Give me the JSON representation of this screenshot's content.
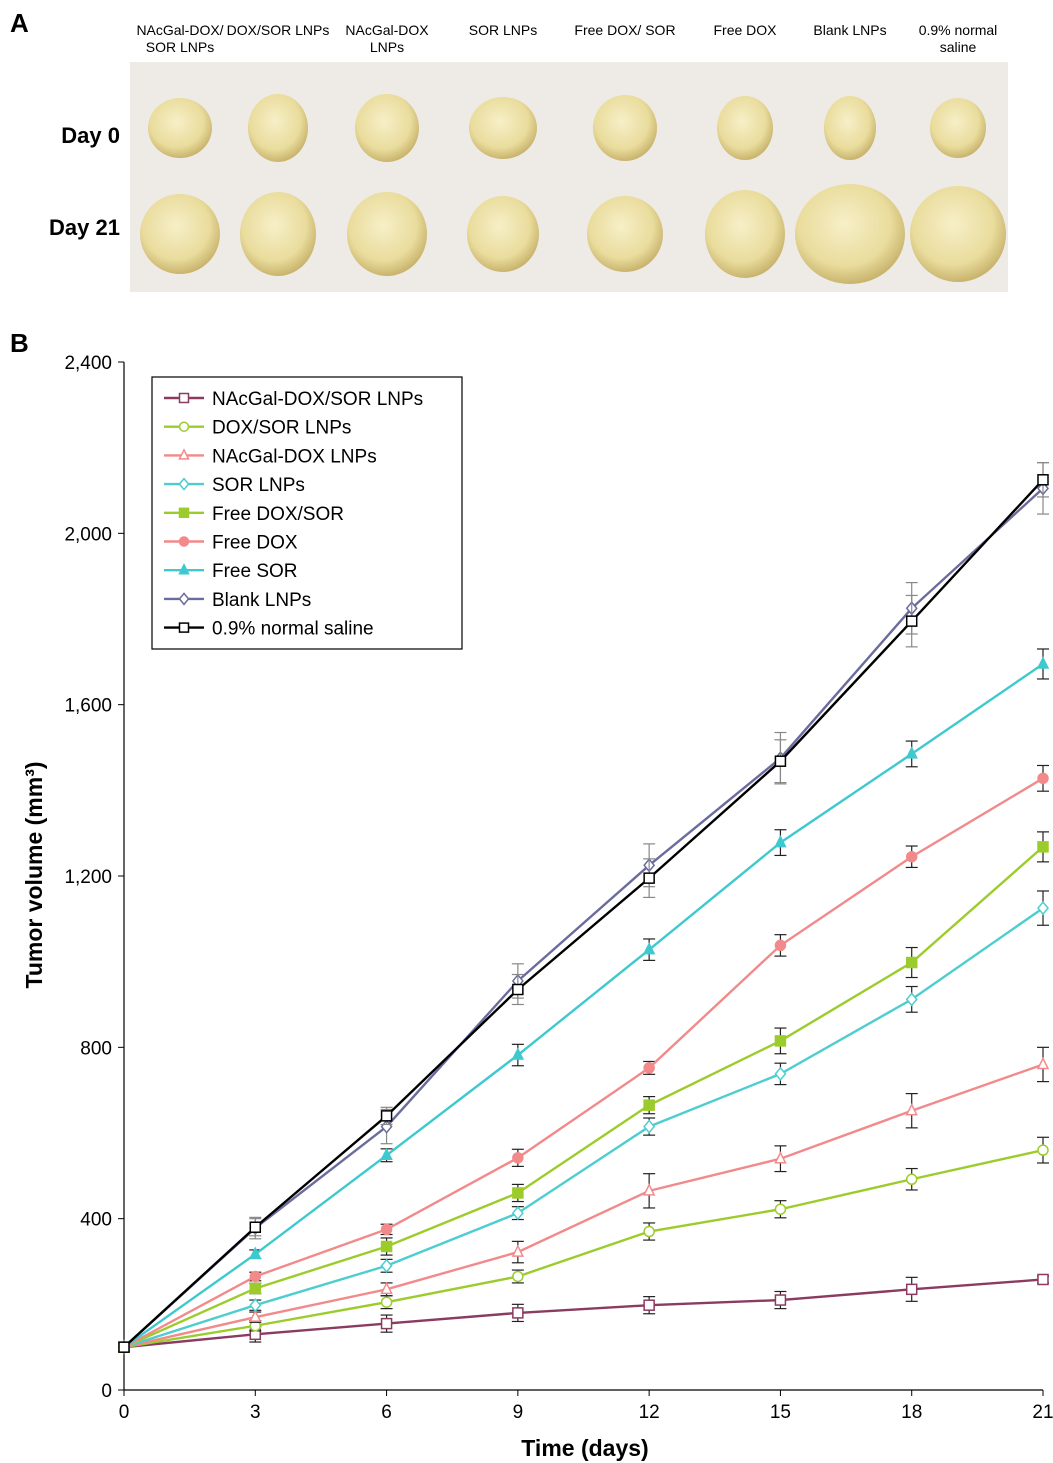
{
  "panel_a": {
    "letter": "A",
    "columns": [
      "NAcGal-DOX/ SOR LNPs",
      "DOX/SOR LNPs",
      "NAcGal-DOX LNPs",
      "SOR LNPs",
      "Free DOX/ SOR",
      "Free DOX",
      "Blank LNPs",
      "0.9% normal saline"
    ],
    "rows": [
      "Day 0",
      "Day 21"
    ],
    "tumor_color": "#e9dc9c"
  },
  "panel_b": {
    "letter": "B"
  },
  "chart_data": {
    "type": "line",
    "xlabel": "Time (days)",
    "ylabel": "Tumor volume (mm³)",
    "x": [
      0,
      3,
      6,
      9,
      12,
      15,
      18,
      21
    ],
    "xticks": [
      "0",
      "3",
      "6",
      "9",
      "12",
      "15",
      "18",
      "21"
    ],
    "yticks": [
      "0",
      "400",
      "800",
      "1,200",
      "1,600",
      "2,000",
      "2,400"
    ],
    "ylim": [
      0,
      2400
    ],
    "xlim": [
      0,
      21
    ],
    "legend": "top-left",
    "grid": false,
    "series": [
      {
        "name": "NAcGal-DOX/SOR LNPs",
        "color": "#8b3a62",
        "marker": "square-open",
        "values": [
          100,
          130,
          155,
          180,
          198,
          210,
          235,
          258
        ],
        "err": [
          10,
          18,
          20,
          20,
          20,
          20,
          28,
          8
        ]
      },
      {
        "name": "DOX/SOR LNPs",
        "color": "#9ccc2b",
        "marker": "circle-open",
        "values": [
          100,
          150,
          205,
          265,
          370,
          422,
          492,
          560
        ],
        "err": [
          8,
          12,
          15,
          15,
          20,
          20,
          25,
          30
        ]
      },
      {
        "name": "NAcGal-DOX LNPs",
        "color": "#f2898a",
        "marker": "triangle-open",
        "values": [
          100,
          170,
          235,
          322,
          465,
          540,
          652,
          760
        ],
        "err": [
          8,
          12,
          15,
          25,
          40,
          30,
          40,
          40
        ]
      },
      {
        "name": "SOR LNPs",
        "color": "#4ecdd0",
        "marker": "diamond-open",
        "values": [
          100,
          198,
          290,
          413,
          615,
          738,
          912,
          1125
        ],
        "err": [
          8,
          12,
          15,
          15,
          20,
          25,
          30,
          40
        ]
      },
      {
        "name": "Free DOX/SOR",
        "color": "#9ccc2b",
        "marker": "square-filled",
        "values": [
          100,
          237,
          335,
          460,
          665,
          815,
          998,
          1268
        ],
        "err": [
          8,
          12,
          20,
          20,
          20,
          30,
          35,
          35
        ]
      },
      {
        "name": "Free DOX",
        "color": "#f2898a",
        "marker": "circle-filled",
        "values": [
          100,
          265,
          375,
          542,
          752,
          1038,
          1245,
          1428
        ],
        "err": [
          8,
          10,
          12,
          20,
          15,
          25,
          25,
          30
        ]
      },
      {
        "name": "Free SOR",
        "color": "#3ec9cf",
        "marker": "triangle-filled",
        "values": [
          100,
          317,
          548,
          782,
          1028,
          1278,
          1485,
          1695
        ],
        "err": [
          8,
          10,
          15,
          25,
          25,
          30,
          30,
          35
        ]
      },
      {
        "name": "Blank LNPs",
        "color": "#6b6c9e",
        "marker": "diamond-open",
        "values": [
          100,
          378,
          615,
          955,
          1225,
          1475,
          1825,
          2105
        ],
        "err": [
          8,
          25,
          40,
          40,
          50,
          60,
          60,
          60
        ]
      },
      {
        "name": "0.9% normal saline",
        "color": "#000000",
        "marker": "square-open",
        "values": [
          100,
          380,
          640,
          935,
          1195,
          1468,
          1795,
          2125
        ],
        "err": [
          8,
          20,
          20,
          35,
          45,
          50,
          60,
          40
        ]
      }
    ]
  }
}
